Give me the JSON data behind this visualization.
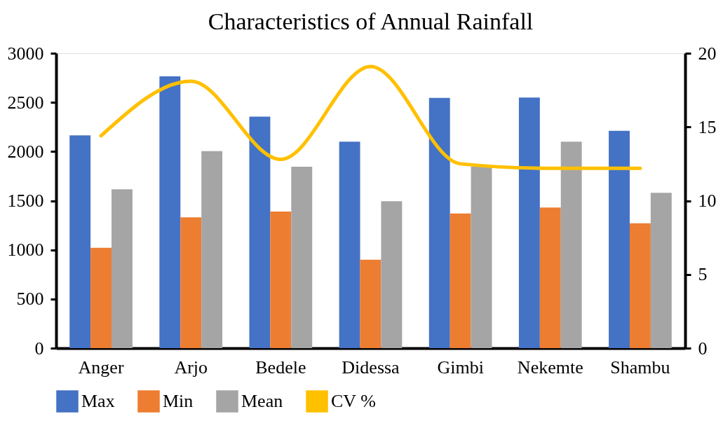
{
  "chart_data": {
    "type": "bar",
    "title": "Characteristics of Annual Rainfall",
    "categories": [
      "Anger",
      "Arjo",
      "Bedele",
      "Didessa",
      "Gimbi",
      "Nekemte",
      "Shambu"
    ],
    "series": [
      {
        "name": "Max",
        "color": "#4472c4",
        "values": [
          2165,
          2765,
          2355,
          2100,
          2545,
          2550,
          2210
        ]
      },
      {
        "name": "Min",
        "color": "#ed7d31",
        "values": [
          1020,
          1330,
          1390,
          900,
          1370,
          1430,
          1270
        ]
      },
      {
        "name": "Mean",
        "color": "#a5a5a5",
        "values": [
          1615,
          2005,
          1845,
          1495,
          1845,
          2100,
          1580
        ]
      },
      {
        "name": "CV %",
        "color": "#ffc000",
        "type": "line",
        "axis": "y2",
        "values": [
          14.4,
          18.1,
          12.8,
          19.1,
          12.5,
          12.2,
          12.2
        ]
      }
    ],
    "ylim": [
      0,
      3000
    ],
    "yticks": [
      0,
      500,
      1000,
      1500,
      2000,
      2500,
      3000
    ],
    "y2lim": [
      0,
      20
    ],
    "y2ticks": [
      0,
      5,
      10,
      15,
      20
    ],
    "grid": false,
    "legend": "bottom"
  }
}
